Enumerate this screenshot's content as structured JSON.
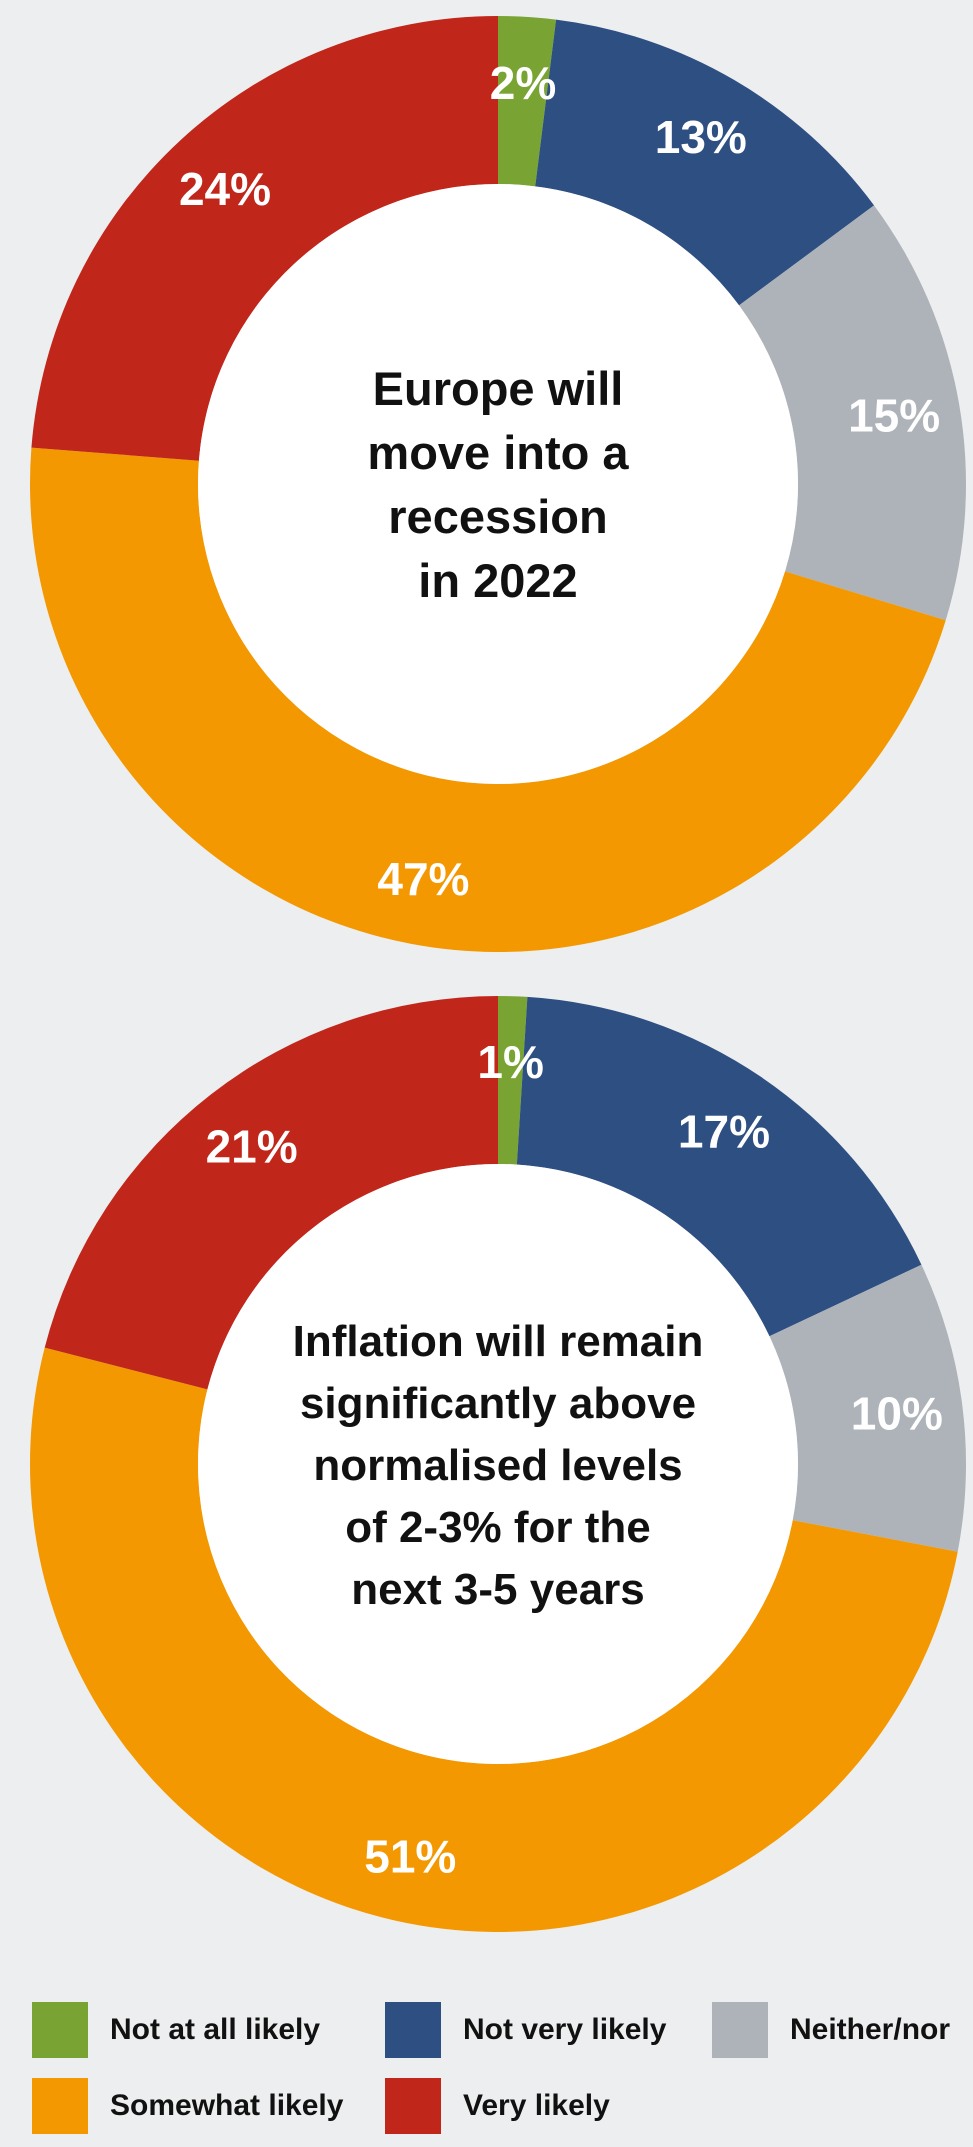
{
  "colors": {
    "Not at all likely": "#79a433",
    "Not very likely": "#2e4f82",
    "Neither/nor": "#aeb3b9",
    "Somewhat likely": "#f39800",
    "Very likely": "#c1261b",
    "background": "#edeef0"
  },
  "legend": [
    {
      "label": "Not at all likely",
      "color": "#79a433"
    },
    {
      "label": "Not very likely",
      "color": "#2e4f82"
    },
    {
      "label": "Neither/nor",
      "color": "#aeb3b9"
    },
    {
      "label": "Somewhat likely",
      "color": "#f39800"
    },
    {
      "label": "Very likely",
      "color": "#c1261b"
    }
  ],
  "chart_data": [
    {
      "type": "pie",
      "title": "",
      "center_text": [
        "Europe will",
        "move into a",
        "recession",
        "in 2022"
      ],
      "categories": [
        "Not at all likely",
        "Not very likely",
        "Neither/nor",
        "Somewhat likely",
        "Very likely"
      ],
      "values": [
        2,
        13,
        15,
        47,
        24
      ],
      "labels": [
        "2%",
        "13%",
        "15%",
        "47%",
        "24%"
      ]
    },
    {
      "type": "pie",
      "title": "",
      "center_text": [
        "Inflation will remain",
        "significantly above",
        "normalised levels",
        "of 2-3% for the",
        "next 3-5 years"
      ],
      "categories": [
        "Not at all likely",
        "Not very likely",
        "Neither/nor",
        "Somewhat likely",
        "Very likely"
      ],
      "values": [
        1,
        17,
        10,
        51,
        21
      ],
      "labels": [
        "1%",
        "17%",
        "10%",
        "51%",
        "21%"
      ]
    }
  ]
}
